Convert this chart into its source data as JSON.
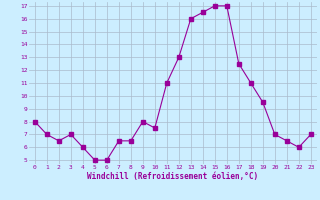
{
  "x": [
    0,
    1,
    2,
    3,
    4,
    5,
    6,
    7,
    8,
    9,
    10,
    11,
    12,
    13,
    14,
    15,
    16,
    17,
    18,
    19,
    20,
    21,
    22,
    23
  ],
  "y": [
    8.0,
    7.0,
    6.5,
    7.0,
    6.0,
    5.0,
    5.0,
    6.5,
    6.5,
    8.0,
    7.5,
    11.0,
    13.0,
    16.0,
    16.5,
    17.0,
    17.0,
    12.5,
    11.0,
    9.5,
    7.0,
    6.5,
    6.0,
    7.0
  ],
  "line_color": "#990099",
  "marker": "s",
  "marker_size": 2.5,
  "bg_color": "#cceeff",
  "grid_color": "#aabbcc",
  "xlabel": "Windchill (Refroidissement éolien,°C)",
  "xlabel_color": "#990099",
  "tick_color": "#990099",
  "ylim": [
    5,
    17
  ],
  "yticks": [
    5,
    6,
    7,
    8,
    9,
    10,
    11,
    12,
    13,
    14,
    15,
    16,
    17
  ],
  "xlim": [
    -0.5,
    23.5
  ],
  "xticks": [
    0,
    1,
    2,
    3,
    4,
    5,
    6,
    7,
    8,
    9,
    10,
    11,
    12,
    13,
    14,
    15,
    16,
    17,
    18,
    19,
    20,
    21,
    22,
    23
  ]
}
